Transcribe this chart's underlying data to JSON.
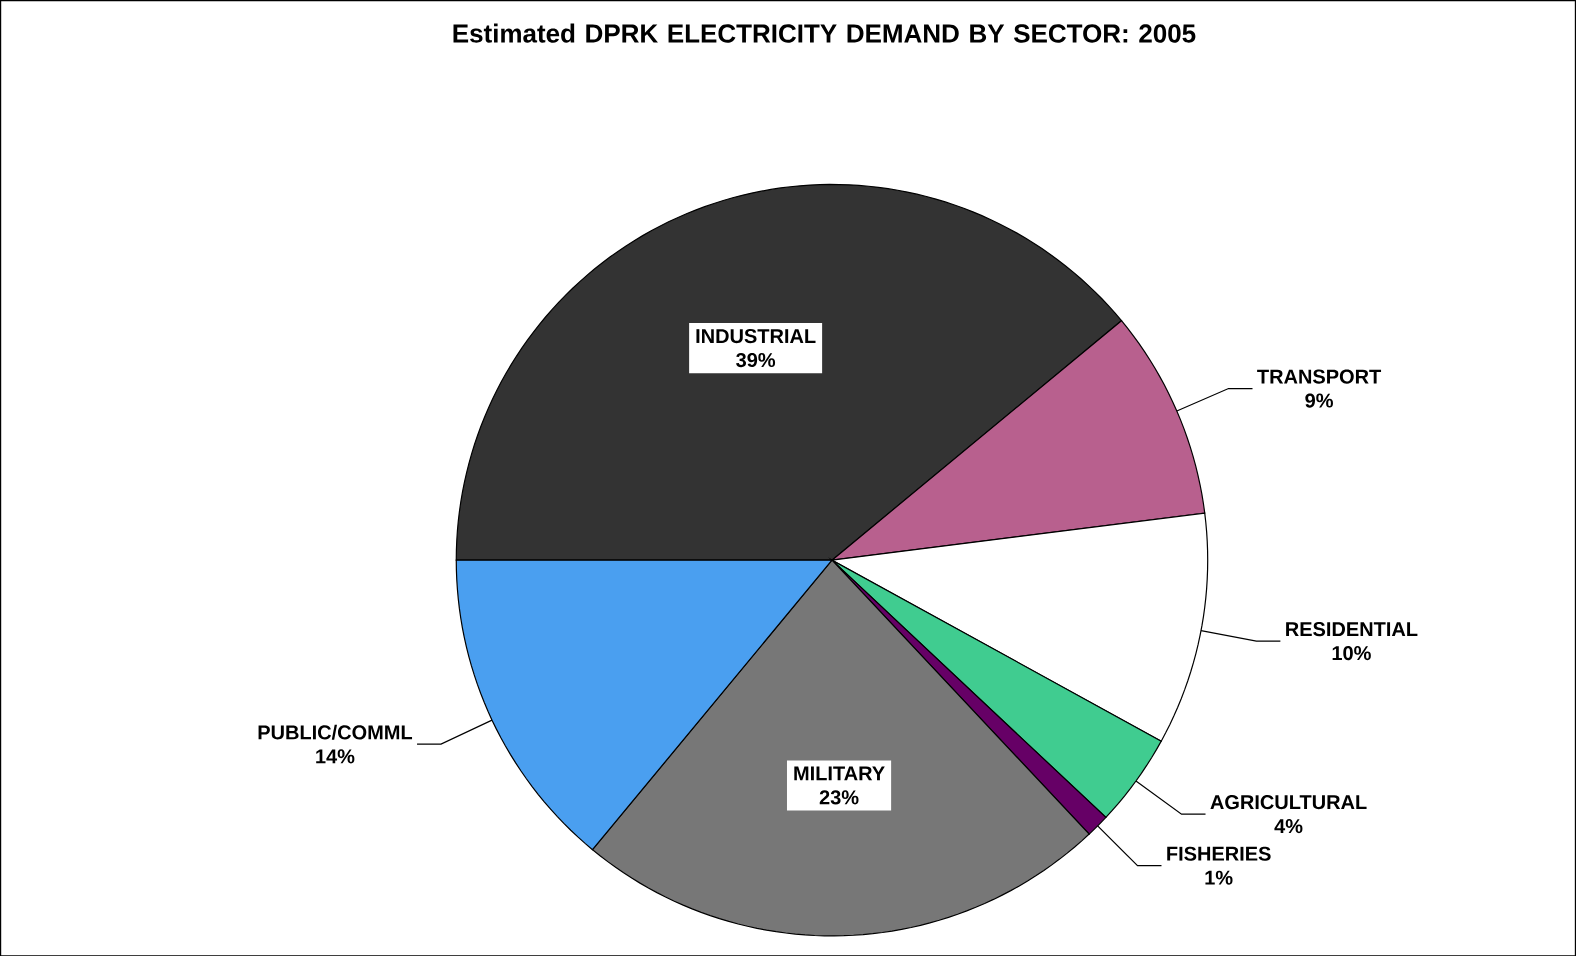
{
  "chart_data": {
    "type": "pie",
    "title": "Estimated DPRK ELECTRICITY DEMAND BY SECTOR: 2005",
    "categories": [
      "INDUSTRIAL",
      "TRANSPORT",
      "RESIDENTIAL",
      "AGRICULTURAL",
      "FISHERIES",
      "MILITARY",
      "PUBLIC/COMML"
    ],
    "values": [
      39,
      9,
      10,
      4,
      1,
      23,
      14
    ],
    "value_labels": [
      "39%",
      "9%",
      "10%",
      "4%",
      "1%",
      "23%",
      "14%"
    ],
    "colors": [
      "#333333",
      "#b8608e",
      "#ffffff",
      "#40cc90",
      "#660066",
      "#777777",
      "#4a9ff0"
    ]
  }
}
